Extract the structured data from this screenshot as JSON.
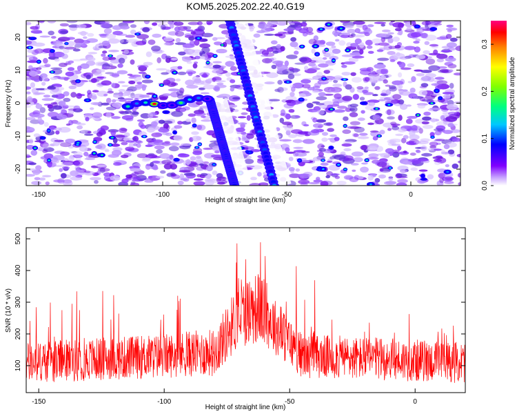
{
  "title": "KOM5.2025.202.22.40.G19",
  "chart_data": [
    {
      "type": "heatmap",
      "xlabel": "Height of straight line (km)",
      "ylabel": "Frequency (Hz)",
      "xlim": [
        -155,
        20
      ],
      "ylim": [
        -25,
        25
      ],
      "x_ticks": [
        -150,
        -100,
        -50,
        0
      ],
      "y_ticks": [
        -20,
        -10,
        0,
        10,
        20
      ],
      "colorbar": {
        "label": "Normalized spectral amplitude",
        "range": [
          0.0,
          0.35
        ],
        "ticks": [
          0.0,
          0.1,
          0.2,
          0.3
        ],
        "colors": [
          "#ffffff",
          "#7f00ff",
          "#0000ff",
          "#00c8ff",
          "#00ff80",
          "#80ff00",
          "#ffff00",
          "#ff8000",
          "#ff0000",
          "#ff0080"
        ]
      },
      "features": [
        {
          "name": "",
          "kind": "streak",
          "x_start": -73,
          "y_start": 25,
          "x_end": -55,
          "y_end": -25,
          "amplitude": 0.1
        },
        {
          "name": "",
          "kind": "streak",
          "x_start": -81,
          "y_start": 1,
          "x_end": -71,
          "y_end": -25,
          "amplitude": 0.08
        },
        {
          "name": "",
          "kind": "cluster",
          "x_start": -114,
          "y_start": -2,
          "x_end": -82,
          "y_end": 1,
          "amplitude": 0.33
        }
      ]
    },
    {
      "type": "line",
      "xlabel": "Height of straight line (km)",
      "ylabel": "SNR (10 * v/v)",
      "xlim": [
        -155,
        20
      ],
      "ylim": [
        15,
        535
      ],
      "x_ticks": [
        -150,
        -100,
        -50,
        0
      ],
      "y_ticks": [
        100,
        200,
        300,
        400,
        500
      ],
      "series": [
        {
          "color": "#ff0000",
          "profile": [
            {
              "x": -155,
              "base": 90,
              "spread": 130
            },
            {
              "x": -100,
              "base": 110,
              "spread": 140
            },
            {
              "x": -80,
              "base": 120,
              "spread": 150
            },
            {
              "x": -70,
              "base": 230,
              "spread": 210
            },
            {
              "x": -62,
              "base": 250,
              "spread": 230
            },
            {
              "x": -55,
              "base": 190,
              "spread": 170
            },
            {
              "x": -45,
              "base": 110,
              "spread": 140
            },
            {
              "x": 20,
              "base": 90,
              "spread": 130
            }
          ]
        }
      ]
    }
  ]
}
